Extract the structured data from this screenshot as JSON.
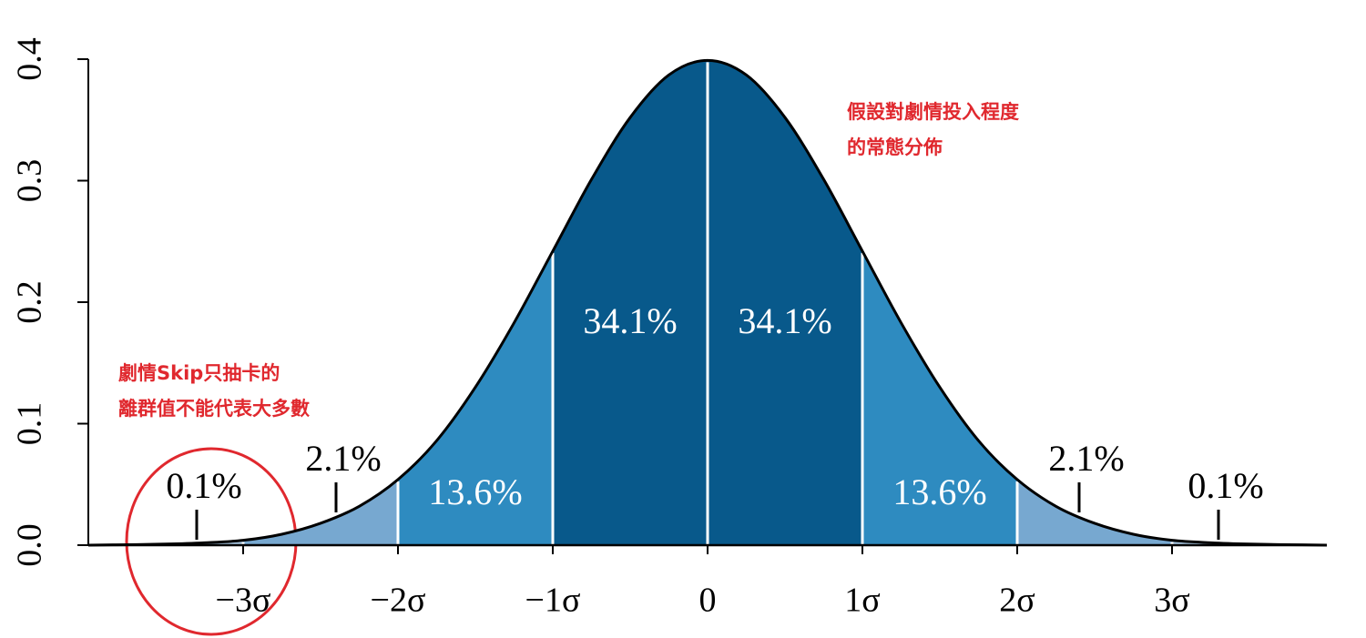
{
  "chart_data": {
    "type": "area",
    "x": [
      -4,
      -3.75,
      -3.5,
      -3.25,
      -3,
      -2.75,
      -2.5,
      -2.25,
      -2,
      -1.75,
      -1.5,
      -1.25,
      -1,
      -0.75,
      -0.5,
      -0.25,
      0,
      0.25,
      0.5,
      0.75,
      1,
      1.25,
      1.5,
      1.75,
      2,
      2.25,
      2.5,
      2.75,
      3,
      3.25,
      3.5,
      3.75,
      4
    ],
    "series": [
      {
        "color": "#000000",
        "values": [
          0,
          0.0004,
          0.0009,
          0.002,
          0.004,
          0.009,
          0.018,
          0.032,
          0.054,
          0.086,
          0.13,
          0.183,
          0.242,
          0.301,
          0.352,
          0.387,
          0.399,
          0.387,
          0.352,
          0.301,
          0.242,
          0.183,
          0.13,
          0.086,
          0.054,
          0.032,
          0.018,
          0.009,
          0.004,
          0.002,
          0.0009,
          0.0004,
          0
        ]
      }
    ],
    "regions": [
      {
        "from": -4,
        "to": -3,
        "value": 0.1,
        "value_label": "0.1%",
        "color": "#a7c6e1"
      },
      {
        "from": -3,
        "to": -2,
        "value": 2.1,
        "value_label": "2.1%",
        "color": "#77a8d0"
      },
      {
        "from": -2,
        "to": -1,
        "value": 13.6,
        "value_label": "13.6%",
        "color": "#2e8bc0"
      },
      {
        "from": -1,
        "to": 0,
        "value": 34.1,
        "value_label": "34.1%",
        "color": "#08598b"
      },
      {
        "from": 0,
        "to": 1,
        "value": 34.1,
        "value_label": "34.1%",
        "color": "#08598b"
      },
      {
        "from": 1,
        "to": 2,
        "value": 13.6,
        "value_label": "13.6%",
        "color": "#2e8bc0"
      },
      {
        "from": 2,
        "to": 3,
        "value": 2.1,
        "value_label": "2.1%",
        "color": "#77a8d0"
      },
      {
        "from": 3,
        "to": 4,
        "value": 0.1,
        "value_label": "0.1%",
        "color": "#a7c6e1"
      }
    ],
    "xlim": [
      -4,
      4
    ],
    "ylim": [
      0,
      0.4
    ],
    "xticks": [
      {
        "value": -3,
        "label": "−3σ"
      },
      {
        "value": -2,
        "label": "−2σ"
      },
      {
        "value": -1,
        "label": "−1σ"
      },
      0,
      {
        "value": 1,
        "label": "1σ"
      },
      {
        "value": 2,
        "label": "2σ"
      },
      {
        "value": 3,
        "label": "3σ"
      }
    ],
    "yticks": [
      {
        "value": 0,
        "label": "0.0"
      },
      0.1,
      0.2,
      0.3,
      0.4
    ],
    "annotations": [
      {
        "lines": [
          "假設對劇情投入程度",
          "的常態分佈"
        ]
      },
      {
        "lines": [
          "劇情Skip只抽卡的",
          "離群值不能代表大多數"
        ]
      }
    ]
  }
}
